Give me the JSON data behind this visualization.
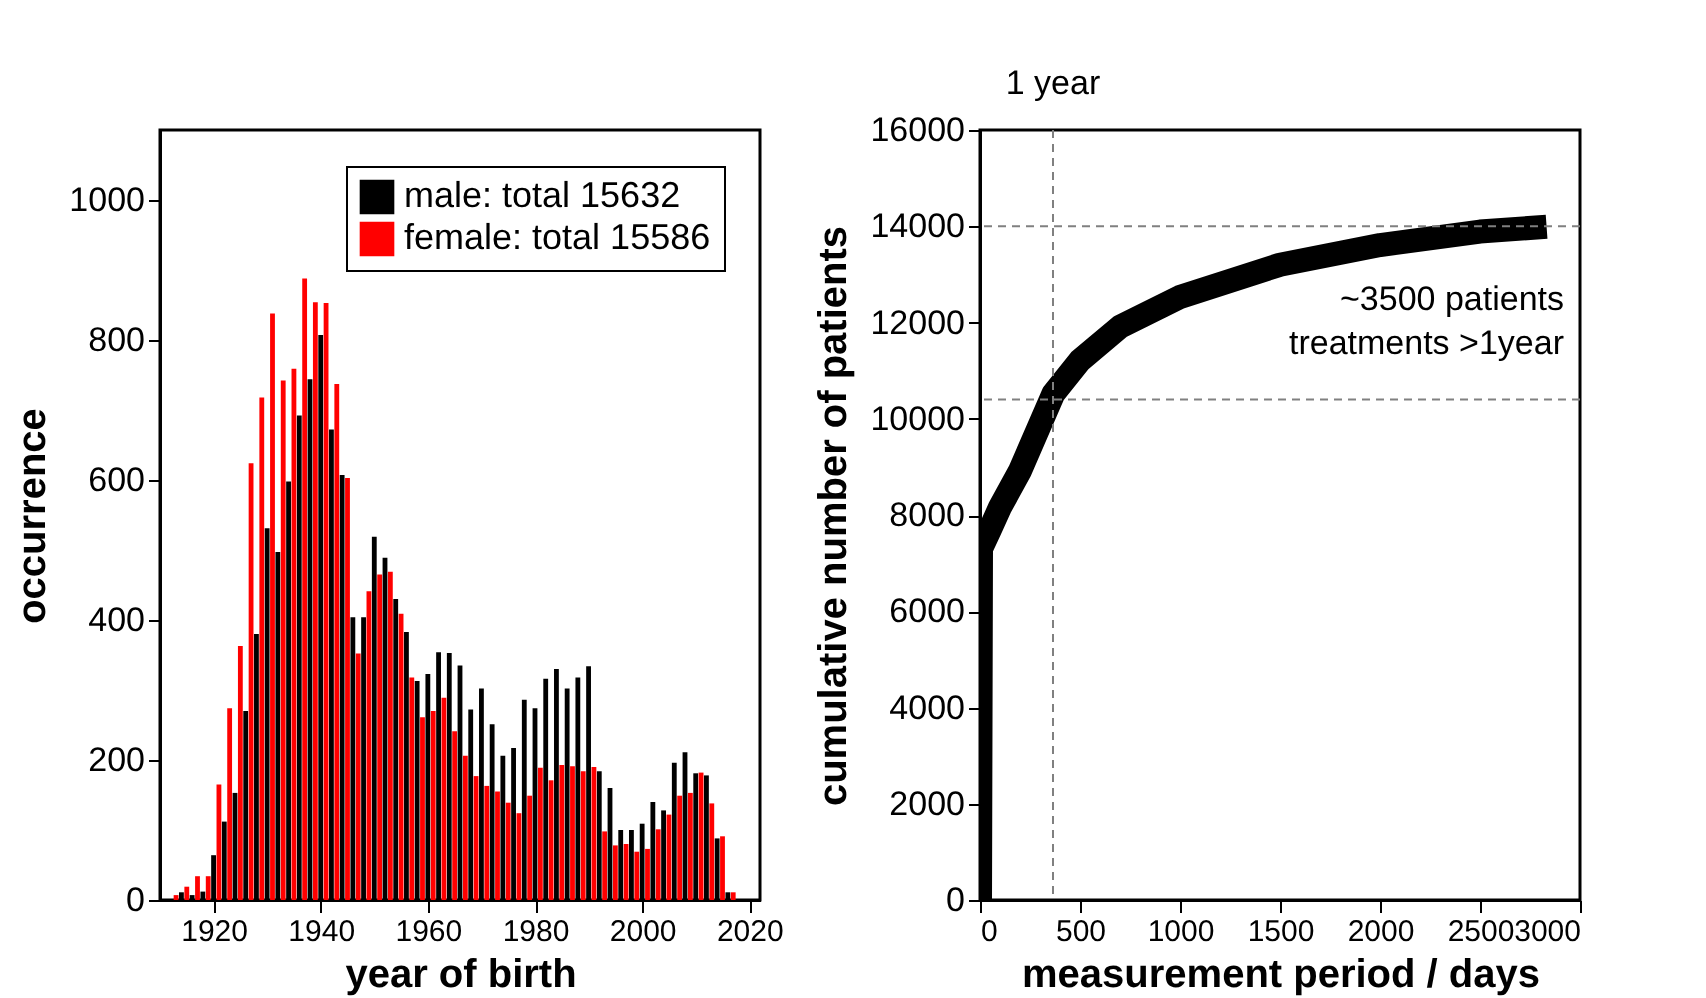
{
  "chart_data": [
    {
      "type": "bar",
      "xlabel": "year of birth",
      "ylabel": "occurrence",
      "xlim": [
        1910,
        2022
      ],
      "xticks": [
        1920,
        1940,
        1960,
        1980,
        2000,
        2020
      ],
      "ylim": [
        0,
        1100
      ],
      "yticks": [
        0,
        200,
        400,
        600,
        800,
        1000
      ],
      "grid": false,
      "legend": "top right",
      "series": [
        {
          "name": "male: total 15632",
          "color": "#000000",
          "x": [
            1914,
            1916,
            1918,
            1920,
            1922,
            1924,
            1926,
            1928,
            1930,
            1932,
            1934,
            1936,
            1938,
            1940,
            1942,
            1944,
            1946,
            1948,
            1950,
            1952,
            1954,
            1956,
            1958,
            1960,
            1962,
            1964,
            1966,
            1968,
            1970,
            1972,
            1974,
            1976,
            1978,
            1980,
            1982,
            1984,
            1986,
            1988,
            1990,
            1992,
            1994,
            1996,
            1998,
            2000,
            2002,
            2004,
            2006,
            2008,
            2010,
            2012,
            2014,
            2016
          ],
          "values": [
            11,
            7,
            12,
            64,
            112,
            153,
            270,
            380,
            531,
            497,
            598,
            692,
            744,
            807,
            672,
            607,
            404,
            404,
            519,
            489,
            430,
            383,
            313,
            323,
            354,
            353,
            335,
            272,
            302,
            251,
            206,
            217,
            286,
            274,
            316,
            330,
            302,
            318,
            334,
            184,
            160,
            100,
            100,
            109,
            140,
            128,
            196,
            211,
            181,
            178,
            88,
            11
          ]
        },
        {
          "name": "female: total 15586",
          "color": "#ff0000",
          "x": [
            1913,
            1915,
            1917,
            1919,
            1921,
            1923,
            1925,
            1927,
            1929,
            1931,
            1933,
            1935,
            1937,
            1939,
            1941,
            1943,
            1945,
            1947,
            1949,
            1951,
            1953,
            1955,
            1957,
            1959,
            1961,
            1963,
            1965,
            1967,
            1969,
            1971,
            1973,
            1975,
            1977,
            1979,
            1981,
            1983,
            1985,
            1987,
            1989,
            1991,
            1993,
            1995,
            1997,
            1999,
            2001,
            2003,
            2005,
            2007,
            2009,
            2011,
            2013,
            2015,
            2017
          ],
          "values": [
            7,
            19,
            34,
            34,
            165,
            274,
            363,
            624,
            718,
            838,
            742,
            759,
            888,
            854,
            853,
            737,
            603,
            352,
            441,
            465,
            469,
            409,
            318,
            261,
            270,
            289,
            241,
            206,
            177,
            163,
            155,
            139,
            124,
            149,
            189,
            171,
            193,
            191,
            184,
            190,
            98,
            78,
            80,
            69,
            73,
            101,
            122,
            149,
            153,
            182,
            138,
            91,
            11
          ]
        }
      ]
    },
    {
      "type": "line",
      "xlabel": "measurement period / days",
      "ylabel": "cumulative number of patients",
      "xlim": [
        0,
        3000
      ],
      "xticks": [
        0,
        500,
        1000,
        1500,
        2000,
        2500,
        3000
      ],
      "ylim": [
        0,
        16000
      ],
      "yticks": [
        0,
        2000,
        4000,
        6000,
        8000,
        10000,
        12000,
        14000,
        16000
      ],
      "grid": false,
      "legend": false,
      "series": [
        {
          "color": "#000000",
          "x": [
            0,
            5,
            50,
            100,
            200,
            367,
            500,
            700,
            1000,
            1500,
            2000,
            2500,
            2833
          ],
          "values": [
            0,
            7300,
            7700,
            8160,
            8920,
            10520,
            11210,
            11910,
            12530,
            13200,
            13610,
            13890,
            13990
          ]
        }
      ],
      "ref_lines": [
        {
          "axis": "x",
          "value": 365,
          "label": "1 year",
          "color": "#808080",
          "line_style": "dashed"
        },
        {
          "axis": "y",
          "value": 14000,
          "label": null,
          "color": "#808080",
          "line_style": "dashed"
        },
        {
          "axis": "y",
          "value": 10400,
          "label": null,
          "color": "#808080",
          "line_style": "dashed"
        }
      ],
      "annotations": [
        "~3500 patients\ntreatments >1year"
      ]
    }
  ]
}
